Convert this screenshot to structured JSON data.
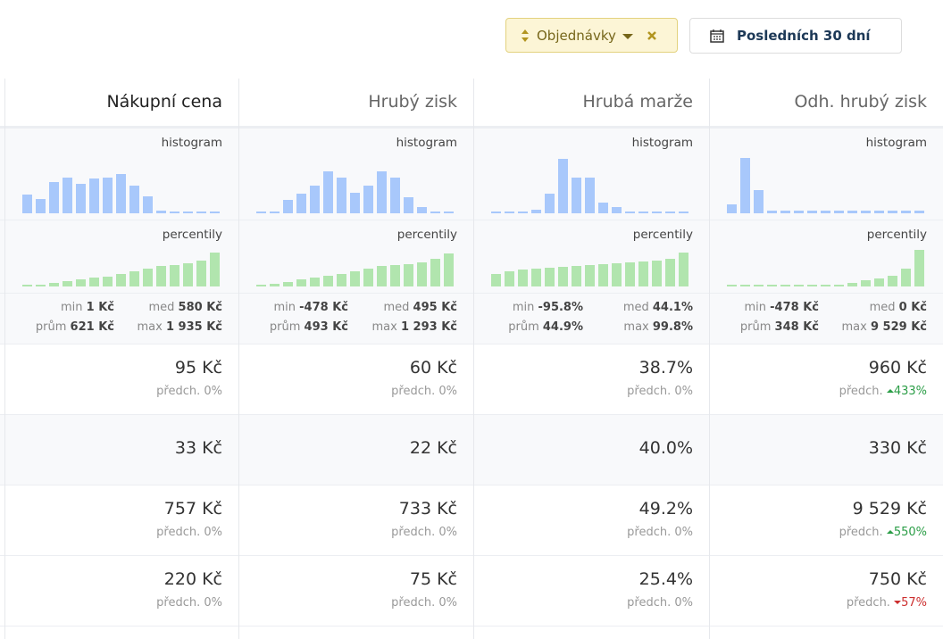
{
  "toolbar": {
    "filter": "Objednávky",
    "date_range": "Posledních 30 dní"
  },
  "section_labels": {
    "histogram": "histogram",
    "percentiles": "percentily",
    "min": "min",
    "med": "med",
    "avg": "prům",
    "max": "max",
    "prev": "předch."
  },
  "columns": [
    {
      "header": "Nákupní cena",
      "histogram": {
        "values": [
          21,
          16,
          35,
          40,
          33,
          39,
          40,
          44,
          31,
          19,
          3,
          2,
          2,
          2,
          2
        ]
      },
      "percentiles": {
        "values": [
          2,
          2,
          4,
          6,
          8,
          10,
          11,
          14,
          17,
          20,
          23,
          24,
          26,
          29,
          38
        ]
      },
      "stats": {
        "min": "1 Kč",
        "med": "580 Kč",
        "avg": "621 Kč",
        "max": "1 935 Kč"
      },
      "rows": [
        {
          "value": "95 Kč",
          "change": "0%",
          "trend": null
        },
        {
          "value": "33 Kč"
        },
        {
          "value": "757 Kč",
          "change": "0%",
          "trend": null
        },
        {
          "value": "220 Kč",
          "change": "0%",
          "trend": null
        }
      ]
    },
    {
      "header": "Hrubý zisk",
      "histogram": {
        "values": [
          2,
          2,
          15,
          22,
          31,
          47,
          40,
          23,
          31,
          47,
          40,
          18,
          7,
          2,
          2
        ]
      },
      "percentiles": {
        "values": [
          2,
          3,
          5,
          8,
          10,
          12,
          14,
          17,
          20,
          23,
          24,
          25,
          27,
          31,
          37
        ]
      },
      "stats": {
        "min": "-478 Kč",
        "med": "495 Kč",
        "avg": "493 Kč",
        "max": "1 293 Kč"
      },
      "rows": [
        {
          "value": "60 Kč",
          "change": "0%",
          "trend": null
        },
        {
          "value": "22 Kč"
        },
        {
          "value": "733 Kč",
          "change": "0%",
          "trend": null
        },
        {
          "value": "75 Kč",
          "change": "0%",
          "trend": null
        }
      ]
    },
    {
      "header": "Hrubá marže",
      "histogram": {
        "values": [
          2,
          2,
          2,
          4,
          22,
          61,
          40,
          40,
          12,
          7,
          2,
          2,
          2,
          2,
          2
        ]
      },
      "percentiles": {
        "values": [
          14,
          17,
          19,
          20,
          21,
          22,
          23,
          24,
          25,
          26,
          27,
          28,
          29,
          31,
          38
        ]
      },
      "stats": {
        "min": "-95.8%",
        "med": "44.1%",
        "avg": "44.9%",
        "max": "99.8%"
      },
      "rows": [
        {
          "value": "38.7%",
          "change": "0%",
          "trend": null
        },
        {
          "value": "40.0%"
        },
        {
          "value": "49.2%",
          "change": "0%",
          "trend": null
        },
        {
          "value": "25.4%",
          "change": "0%",
          "trend": null
        }
      ]
    },
    {
      "header": "Odh. hrubý zisk",
      "histogram": {
        "values": [
          10,
          62,
          26,
          3,
          3,
          3,
          3,
          3,
          3,
          3,
          3,
          3,
          3,
          3,
          3
        ]
      },
      "percentiles": {
        "values": [
          2,
          2,
          2,
          2,
          2,
          2,
          2,
          2,
          2,
          4,
          7,
          9,
          12,
          20,
          41
        ]
      },
      "stats": {
        "min": "-478 Kč",
        "med": "0 Kč",
        "avg": "348 Kč",
        "max": "9 529 Kč"
      },
      "rows": [
        {
          "value": "960 Kč",
          "change": "433%",
          "trend": "up"
        },
        {
          "value": "330 Kč"
        },
        {
          "value": "9 529 Kč",
          "change": "550%",
          "trend": "up"
        },
        {
          "value": "750 Kč",
          "change": "57%",
          "trend": "down"
        }
      ]
    }
  ]
}
